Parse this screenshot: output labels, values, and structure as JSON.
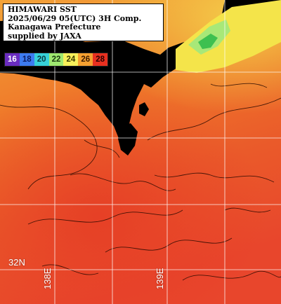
{
  "title_lines": [
    "HIMAWARI SST",
    "2025/06/29 05(UTC) 3H Comp.",
    "Kanagawa Prefecture",
    "supplied by JAXA"
  ],
  "legend": [
    {
      "label": "16",
      "bg": "#6a2cc0",
      "fg": "#ffffff"
    },
    {
      "label": "18",
      "bg": "#3d7bf0",
      "fg": "#0a1a60"
    },
    {
      "label": "20",
      "bg": "#36d1d8",
      "fg": "#0a3a40"
    },
    {
      "label": "22",
      "bg": "#9ee870",
      "fg": "#1a3a10"
    },
    {
      "label": "24",
      "bg": "#f7f05a",
      "fg": "#3a3a00"
    },
    {
      "label": "26",
      "bg": "#f5a030",
      "fg": "#3a1a00"
    },
    {
      "label": "28",
      "bg": "#e83020",
      "fg": "#2a0000"
    }
  ],
  "grid": {
    "lat_label": "32N",
    "lon_labels": [
      "138E",
      "139E"
    ]
  },
  "colors": {
    "land": "#000000",
    "grid": "#ffffff",
    "sst_cool": "#f0d040",
    "sst_mid": "#f08a28",
    "sst_warm": "#e8402a"
  }
}
